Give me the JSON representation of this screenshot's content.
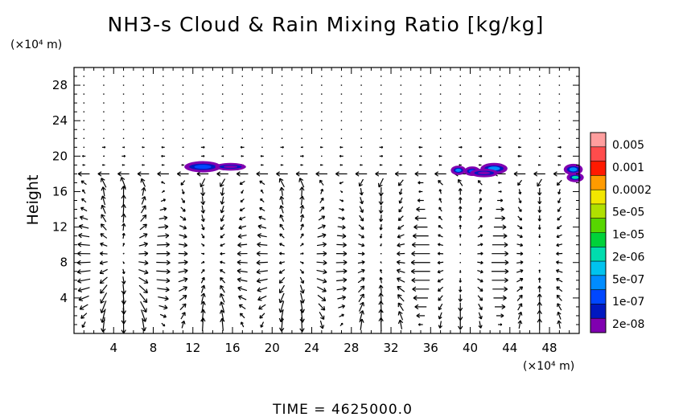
{
  "chart_data": {
    "type": "contour_vector",
    "title": "NH3-s Cloud & Rain Mixing Ratio [kg/kg]",
    "xlabel": "",
    "ylabel": "Height",
    "x_unit": "(×10⁴ m)",
    "y_unit": "(×10⁴ m)",
    "xlim": [
      0,
      51
    ],
    "ylim": [
      0,
      30
    ],
    "x_ticks": [
      "4",
      "8",
      "12",
      "16",
      "20",
      "24",
      "28",
      "32",
      "36",
      "40",
      "44",
      "48"
    ],
    "y_ticks": [
      "4",
      "8",
      "12",
      "16",
      "20",
      "24",
      "28"
    ],
    "time_label": "TIME  =  4625000.0",
    "colorbar": {
      "labels": [
        "0.005",
        "0.001",
        "0.0002",
        "5e-05",
        "1e-05",
        "2e-06",
        "5e-07",
        "1e-07",
        "2e-08"
      ],
      "colors": [
        "#ff9e9e",
        "#ff4c4c",
        "#ff1a00",
        "#ff9b00",
        "#f2e600",
        "#b0e000",
        "#57d600",
        "#00d23a",
        "#00dcae",
        "#00c3ee",
        "#008cff",
        "#0047ff",
        "#0018c0",
        "#8000b0"
      ]
    },
    "cloud_patches": [
      {
        "x": 13.0,
        "y": 18.8,
        "width": 3.4,
        "height": 1.0,
        "level": "1e-07"
      },
      {
        "x": 15.8,
        "y": 18.8,
        "width": 2.8,
        "height": 0.6,
        "level": "2e-08"
      },
      {
        "x": 38.8,
        "y": 18.4,
        "width": 1.2,
        "height": 0.8,
        "level": "5e-07"
      },
      {
        "x": 40.2,
        "y": 18.3,
        "width": 1.3,
        "height": 0.8,
        "level": "1e-07"
      },
      {
        "x": 42.4,
        "y": 18.6,
        "width": 2.4,
        "height": 1.0,
        "level": "5e-07"
      },
      {
        "x": 41.4,
        "y": 18.1,
        "width": 2.5,
        "height": 0.7,
        "level": "2e-08"
      },
      {
        "x": 50.4,
        "y": 18.5,
        "width": 1.6,
        "height": 1.0,
        "level": "5e-07"
      },
      {
        "x": 50.6,
        "y": 17.6,
        "width": 1.4,
        "height": 0.8,
        "level": "2e-06"
      }
    ],
    "vector_field": {
      "cells": [
        {
          "x0": 0,
          "x1": 9.5,
          "w": 2.8,
          "sense": -1
        },
        {
          "x0": 9.5,
          "x1": 18,
          "w": 2.2,
          "sense": 1
        },
        {
          "x0": 18,
          "x1": 26.5,
          "w": 2.4,
          "sense": -1
        },
        {
          "x0": 26.5,
          "x1": 35,
          "w": 2.2,
          "sense": 1
        },
        {
          "x0": 35,
          "x1": 43,
          "w": 1.6,
          "sense": -1
        },
        {
          "x0": 43,
          "x1": 51,
          "w": 1.8,
          "sense": 1
        }
      ],
      "jet_level": 17.9,
      "jet_speed": 1.6
    }
  }
}
